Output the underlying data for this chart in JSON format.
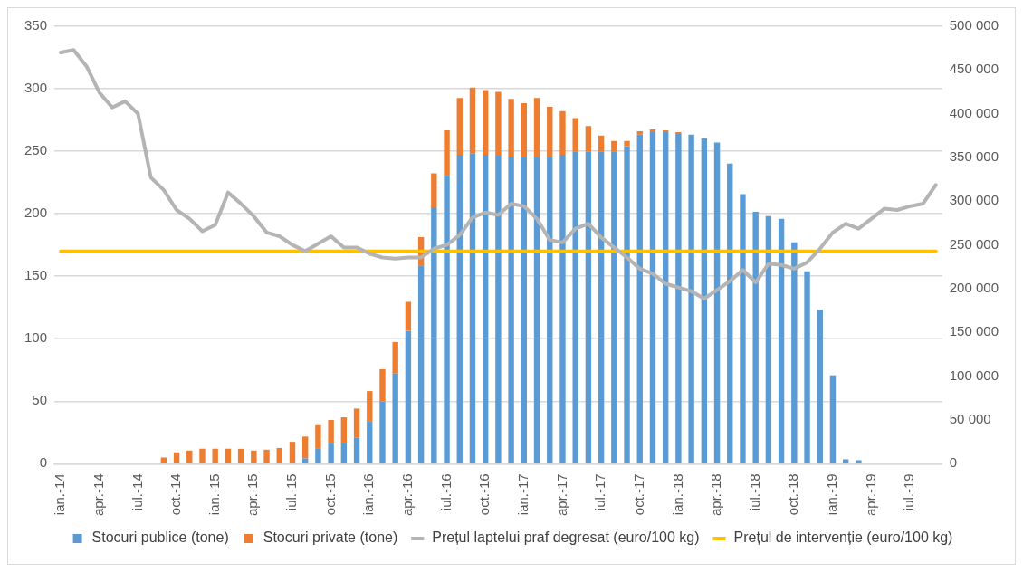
{
  "chart_data": {
    "type": "bar",
    "stacked": true,
    "categories": [
      "ian.-14",
      null,
      null,
      "apr.-14",
      null,
      null,
      "iul.-14",
      null,
      null,
      "oct.-14",
      null,
      null,
      "ian.-15",
      null,
      null,
      "apr.-15",
      null,
      null,
      "iul.-15",
      null,
      null,
      "oct.-15",
      null,
      null,
      "ian.-16",
      null,
      null,
      "apr.-16",
      null,
      null,
      "iul.-16",
      null,
      null,
      "oct.-16",
      null,
      null,
      "ian.-17",
      null,
      null,
      "apr.-17",
      null,
      null,
      "iul.-17",
      null,
      null,
      "oct.-17",
      null,
      null,
      "ian.-18",
      null,
      null,
      "apr.-18",
      null,
      null,
      "iul.-18",
      null,
      null,
      "oct.-18",
      null,
      null,
      "ian.-19",
      null,
      null,
      "apr.-19",
      null,
      null,
      "iul.-19",
      null,
      null
    ],
    "series": [
      {
        "name": "Stocuri publice (tone)",
        "axis": "y2",
        "color": "#5b9bd5",
        "values": [
          null,
          null,
          null,
          null,
          null,
          null,
          null,
          null,
          null,
          null,
          null,
          null,
          null,
          null,
          null,
          null,
          null,
          null,
          null,
          6000,
          17000,
          23000,
          24000,
          30000,
          48000,
          71000,
          103000,
          152000,
          226000,
          293000,
          329000,
          353000,
          355000,
          353000,
          352000,
          351000,
          350000,
          350000,
          350000,
          353000,
          357000,
          357000,
          357000,
          357000,
          363000,
          376000,
          379000,
          379000,
          377000,
          376000,
          372000,
          367000,
          343000,
          308000,
          288000,
          283000,
          280000,
          253000,
          220000,
          176000,
          101000,
          5000,
          4000,
          null,
          null,
          null,
          null,
          null,
          null
        ]
      },
      {
        "name": "Stocuri private (tone)",
        "axis": "y2",
        "color": "#ed7d31",
        "values": [
          null,
          null,
          null,
          null,
          null,
          null,
          null,
          null,
          7000,
          13000,
          15000,
          17000,
          17000,
          17000,
          17000,
          15000,
          16000,
          18000,
          25000,
          25000,
          27000,
          27000,
          29000,
          33000,
          35000,
          37000,
          36000,
          33000,
          33000,
          39000,
          52000,
          65000,
          75000,
          74000,
          73000,
          66000,
          62000,
          68000,
          58000,
          50000,
          38000,
          29000,
          18000,
          12000,
          6000,
          4000,
          3000,
          2000,
          2000,
          null,
          null,
          null,
          null,
          null,
          null,
          null,
          null,
          null,
          null,
          null,
          null,
          null,
          null,
          null,
          null,
          null,
          null,
          null,
          null
        ]
      },
      {
        "name": "Prețul laptelui praf degresat (euro/100 kg)",
        "type": "line",
        "axis": "y",
        "color": "#b4b4b4",
        "values": [
          329,
          331,
          318,
          297,
          285,
          290,
          280,
          229,
          219,
          203,
          196,
          186,
          191,
          217,
          208,
          198,
          185,
          182,
          175,
          170,
          176,
          182,
          173,
          173,
          168,
          165,
          164,
          165,
          165,
          172,
          175,
          183,
          197,
          201,
          199,
          208,
          206,
          196,
          179,
          177,
          188,
          192,
          181,
          173,
          165,
          156,
          152,
          144,
          141,
          138,
          132,
          139,
          146,
          155,
          145,
          160,
          159,
          156,
          161,
          172,
          185,
          192,
          188,
          196,
          204,
          203,
          206,
          208,
          223
        ]
      },
      {
        "name": "Prețul de intervenție (euro/100 kg)",
        "type": "line",
        "axis": "y",
        "color": "#ffc000",
        "values": [
          169.8,
          169.8,
          169.8,
          169.8,
          169.8,
          169.8,
          169.8,
          169.8,
          169.8,
          169.8,
          169.8,
          169.8,
          169.8,
          169.8,
          169.8,
          169.8,
          169.8,
          169.8,
          169.8,
          169.8,
          169.8,
          169.8,
          169.8,
          169.8,
          169.8,
          169.8,
          169.8,
          169.8,
          169.8,
          169.8,
          169.8,
          169.8,
          169.8,
          169.8,
          169.8,
          169.8,
          169.8,
          169.8,
          169.8,
          169.8,
          169.8,
          169.8,
          169.8,
          169.8,
          169.8,
          169.8,
          169.8,
          169.8,
          169.8,
          169.8,
          169.8,
          169.8,
          169.8,
          169.8,
          169.8,
          169.8,
          169.8,
          169.8,
          169.8,
          169.8,
          169.8,
          169.8,
          169.8,
          169.8,
          169.8,
          169.8,
          169.8,
          169.8,
          169.8
        ]
      }
    ],
    "ylim": [
      0,
      350
    ],
    "yticks": [
      0,
      50,
      100,
      150,
      200,
      250,
      300,
      350
    ],
    "y2lim": [
      0,
      500000
    ],
    "y2ticks": [
      0,
      {
        "value": 50000,
        "label": "50 000"
      },
      {
        "value": 100000,
        "label": "100 000"
      },
      {
        "value": 150000,
        "label": "150 000"
      },
      {
        "value": 200000,
        "label": "200 000"
      },
      {
        "value": 250000,
        "label": "250 000"
      },
      {
        "value": 300000,
        "label": "300 000"
      },
      {
        "value": 350000,
        "label": "350 000"
      },
      {
        "value": 400000,
        "label": "400 000"
      },
      {
        "value": 450000,
        "label": "450 000"
      },
      {
        "value": 500000,
        "label": "500 000"
      }
    ],
    "grid": "y",
    "legend": "bottom",
    "marker": "none"
  }
}
